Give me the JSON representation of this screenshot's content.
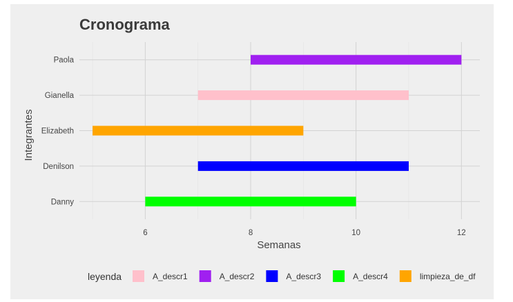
{
  "chart_data": {
    "type": "bar",
    "orientation": "horizontal-range",
    "title": "Cronograma",
    "xlabel": "Semanas",
    "ylabel": "Integrantes",
    "xlim": [
      4.75,
      12.35
    ],
    "xticks": [
      6,
      8,
      10,
      12
    ],
    "categories": [
      "Danny",
      "Denilson",
      "Elizabeth",
      "Gianella",
      "Paola"
    ],
    "tasks": [
      {
        "member": "Paola",
        "start": 8,
        "end": 12,
        "legend": "A_descr2"
      },
      {
        "member": "Gianella",
        "start": 7,
        "end": 11,
        "legend": "A_descr1"
      },
      {
        "member": "Elizabeth",
        "start": 5,
        "end": 9,
        "legend": "limpieza_de_df"
      },
      {
        "member": "Denilson",
        "start": 7,
        "end": 11,
        "legend": "A_descr3"
      },
      {
        "member": "Danny",
        "start": 6,
        "end": 10,
        "legend": "A_descr4"
      }
    ],
    "legend": {
      "title": "leyenda",
      "position": "bottom",
      "entries": [
        {
          "label": "A_descr1",
          "color": "#ffc0cb"
        },
        {
          "label": "A_descr2",
          "color": "#a020f0"
        },
        {
          "label": "A_descr3",
          "color": "#0000ff"
        },
        {
          "label": "A_descr4",
          "color": "#00ff00"
        },
        {
          "label": "limpieza_de_df",
          "color": "#ffa500"
        }
      ]
    },
    "grid": true,
    "background": "#efefef"
  }
}
